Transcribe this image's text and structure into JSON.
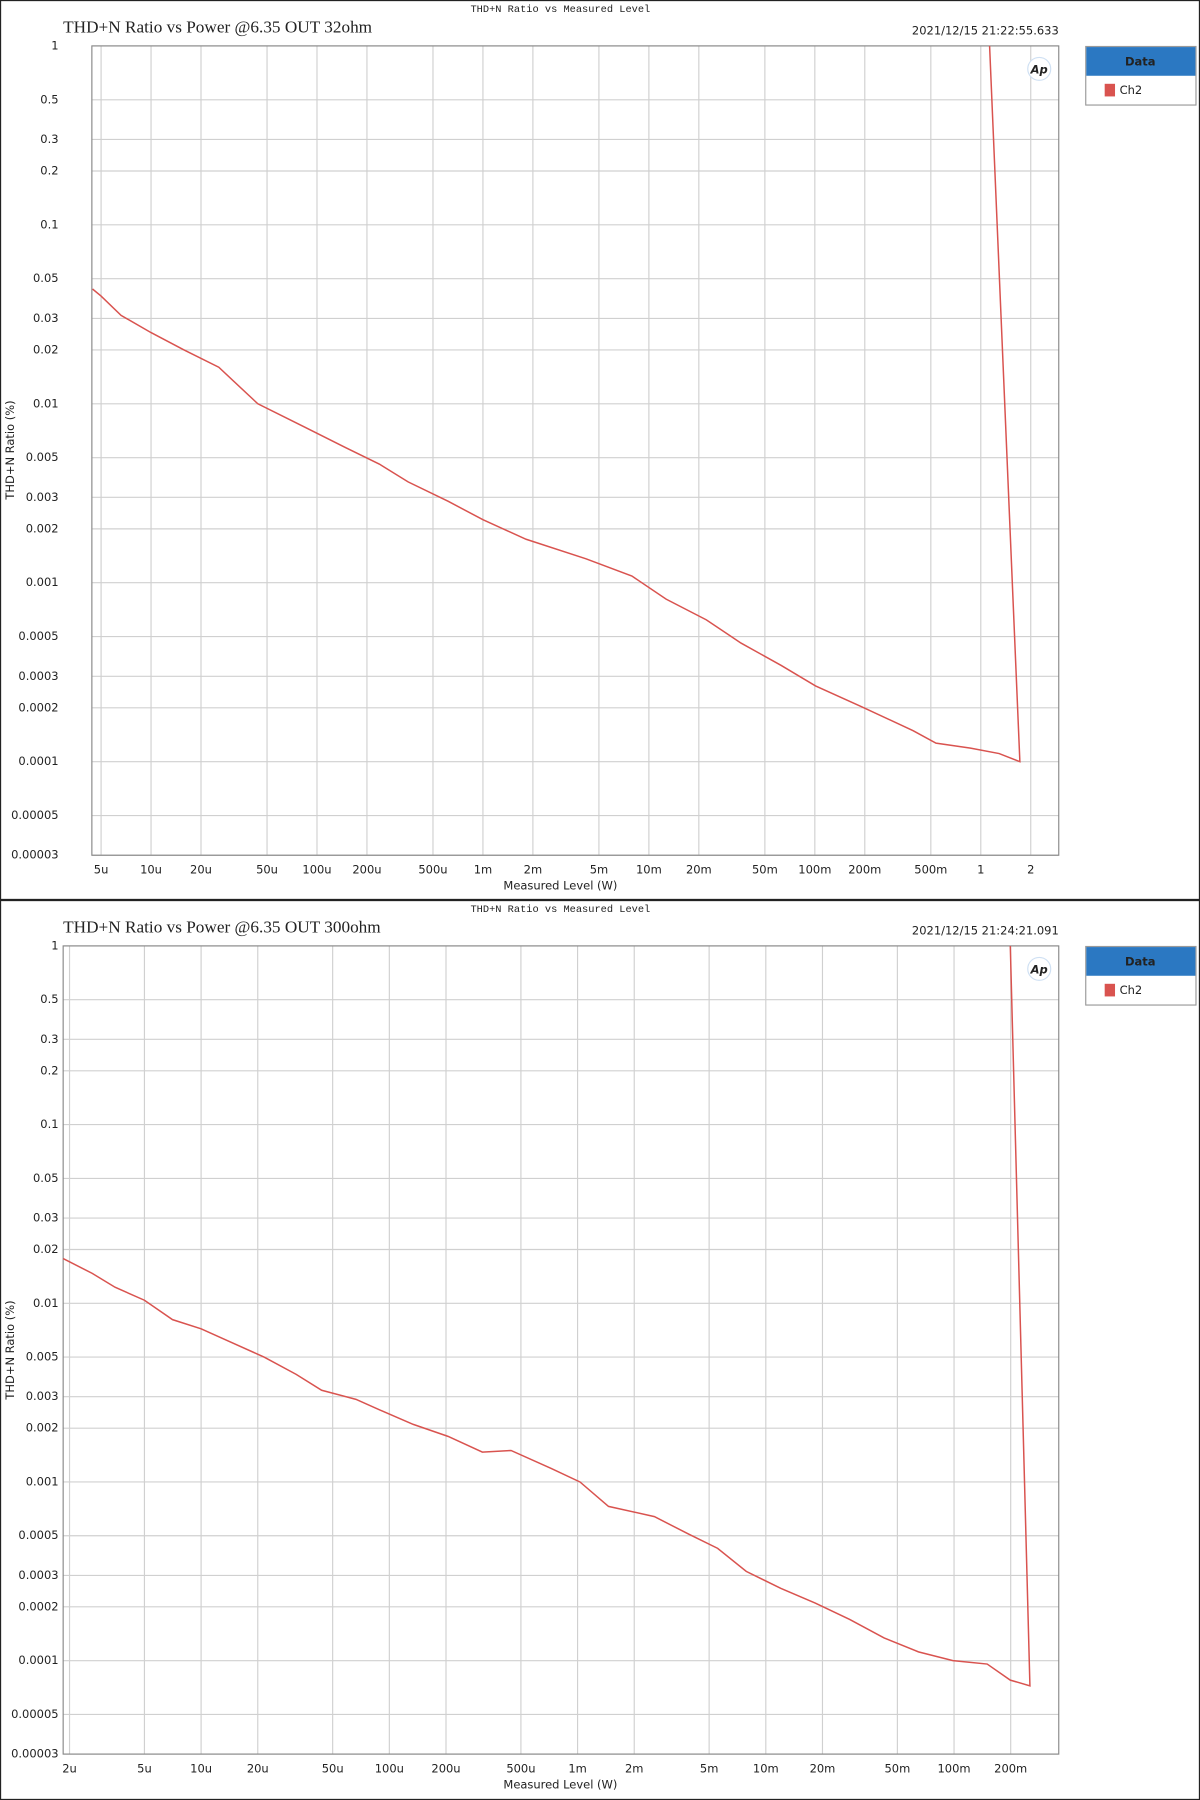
{
  "chart_data": [
    {
      "type": "line",
      "header": "THD+N Ratio vs Measured Level",
      "title": "THD+N Ratio vs Power @6.35 OUT 32ohm",
      "timestamp": "2021/12/15 21:22:55.633",
      "xlabel": "Measured Level (W)",
      "ylabel": "THD+N Ratio (%)",
      "logo": "Ap",
      "legend_title": "Data",
      "xscale": "log",
      "yscale": "log",
      "grid": true,
      "xlim": [
        4.4e-06,
        2.95
      ],
      "ylim": [
        3e-05,
        1
      ],
      "xticks": [
        {
          "value": 5e-06,
          "label": "5u"
        },
        {
          "value": 1e-05,
          "label": "10u"
        },
        {
          "value": 2e-05,
          "label": "20u"
        },
        {
          "value": 5e-05,
          "label": "50u"
        },
        {
          "value": 0.0001,
          "label": "100u"
        },
        {
          "value": 0.0002,
          "label": "200u"
        },
        {
          "value": 0.0005,
          "label": "500u"
        },
        {
          "value": 0.001,
          "label": "1m"
        },
        {
          "value": 0.002,
          "label": "2m"
        },
        {
          "value": 0.005,
          "label": "5m"
        },
        {
          "value": 0.01,
          "label": "10m"
        },
        {
          "value": 0.02,
          "label": "20m"
        },
        {
          "value": 0.05,
          "label": "50m"
        },
        {
          "value": 0.1,
          "label": "100m"
        },
        {
          "value": 0.2,
          "label": "200m"
        },
        {
          "value": 0.5,
          "label": "500m"
        },
        1,
        2
      ],
      "yticks": [
        1,
        0.5,
        0.3,
        0.2,
        0.1,
        0.05,
        0.03,
        0.02,
        0.01,
        0.005,
        0.003,
        0.002,
        0.001,
        0.0005,
        0.0003,
        0.0002,
        0.0001,
        5e-05,
        3e-05
      ],
      "x": [
        4.44e-06,
        5e-06,
        6.6e-06,
        1e-05,
        1.58e-05,
        2.56e-05,
        4.4e-05,
        8.45e-05,
        0.000148,
        0.000238,
        0.000354,
        0.000618,
        0.001,
        0.00182,
        0.00418,
        0.0079,
        0.0127,
        0.0222,
        0.0359,
        0.0627,
        0.101,
        0.191,
        0.391,
        0.537,
        0.867,
        1.29,
        1.72,
        1.13
      ],
      "series": [
        {
          "name": "Ch2",
          "color": "#d9534f",
          "values": [
            0.0438,
            0.04,
            0.0312,
            0.025,
            0.02,
            0.016,
            0.01,
            0.0074,
            0.0057,
            0.0046,
            0.00366,
            0.00285,
            0.00225,
            0.00175,
            0.00136,
            0.00109,
            0.00081,
            0.00062,
            0.00046,
            0.000345,
            0.000265,
            0.000203,
            0.000149,
            0.000127,
            0.000119,
            0.000111,
            0.0001,
            1
          ]
        }
      ]
    },
    {
      "type": "line",
      "header": "THD+N Ratio vs Measured Level",
      "title": "THD+N Ratio vs Power @6.35 OUT 300ohm",
      "timestamp": "2021/12/15 21:24:21.091",
      "xlabel": "Measured Level (W)",
      "ylabel": "THD+N Ratio (%)",
      "logo": "Ap",
      "legend_title": "Data",
      "xscale": "log",
      "yscale": "log",
      "grid": true,
      "xlim": [
        1.85e-06,
        0.36
      ],
      "ylim": [
        3e-05,
        1
      ],
      "xticks": [
        {
          "value": 2e-06,
          "label": "2u"
        },
        {
          "value": 5e-06,
          "label": "5u"
        },
        {
          "value": 1e-05,
          "label": "10u"
        },
        {
          "value": 2e-05,
          "label": "20u"
        },
        {
          "value": 5e-05,
          "label": "50u"
        },
        {
          "value": 0.0001,
          "label": "100u"
        },
        {
          "value": 0.0002,
          "label": "200u"
        },
        {
          "value": 0.0005,
          "label": "500u"
        },
        {
          "value": 0.001,
          "label": "1m"
        },
        {
          "value": 0.002,
          "label": "2m"
        },
        {
          "value": 0.005,
          "label": "5m"
        },
        {
          "value": 0.01,
          "label": "10m"
        },
        {
          "value": 0.02,
          "label": "20m"
        },
        {
          "value": 0.05,
          "label": "50m"
        },
        {
          "value": 0.1,
          "label": "100m"
        },
        {
          "value": 0.2,
          "label": "200m"
        }
      ],
      "yticks": [
        1,
        0.5,
        0.3,
        0.2,
        0.1,
        0.05,
        0.03,
        0.02,
        0.01,
        0.005,
        0.003,
        0.002,
        0.001,
        0.0005,
        0.0003,
        0.0002,
        0.0001,
        5e-05,
        3e-05
      ],
      "x": [
        1.85e-06,
        2.64e-06,
        3.49e-06,
        5e-06,
        7.05e-06,
        1e-05,
        1.42e-05,
        2.16e-05,
        3.2e-05,
        4.37e-05,
        6.65e-05,
        9.45e-05,
        0.000134,
        0.000205,
        0.000312,
        0.000443,
        0.000724,
        0.00103,
        0.00146,
        0.00256,
        0.0039,
        0.00555,
        0.00787,
        0.012,
        0.0183,
        0.0279,
        0.0425,
        0.0647,
        0.0986,
        0.15,
        0.199,
        0.253,
        0.199
      ],
      "series": [
        {
          "name": "Ch2",
          "color": "#d9534f",
          "values": [
            0.0178,
            0.0147,
            0.0123,
            0.0104,
            0.0081,
            0.0072,
            0.0061,
            0.005,
            0.004,
            0.00326,
            0.0029,
            0.00246,
            0.0021,
            0.0018,
            0.00147,
            0.0015,
            0.00119,
            0.001,
            0.00073,
            0.00064,
            0.00051,
            0.000425,
            0.000316,
            0.000254,
            0.00021,
            0.00017,
            0.000134,
            0.000112,
            0.0001,
            9.57e-05,
            7.78e-05,
            7.23e-05,
            1
          ]
        }
      ]
    }
  ]
}
